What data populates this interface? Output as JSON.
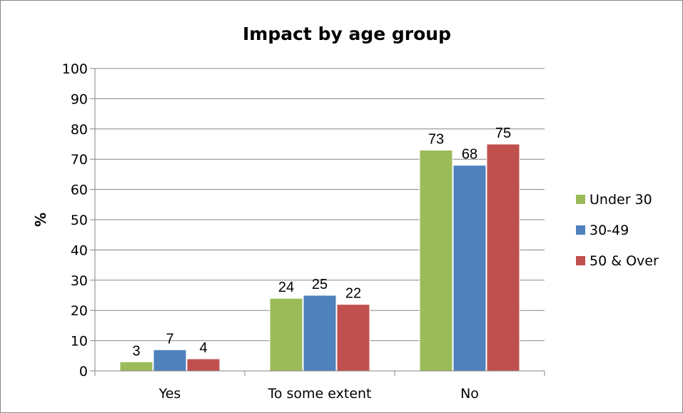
{
  "chart_data": {
    "type": "bar",
    "title": "Impact by age group",
    "xlabel": "",
    "ylabel": "%",
    "ylim": [
      0,
      100
    ],
    "yticks": [
      0,
      10,
      20,
      30,
      40,
      50,
      60,
      70,
      80,
      90,
      100
    ],
    "grid": true,
    "legend_position": "right",
    "categories": [
      "Yes",
      "To some extent",
      "No"
    ],
    "series": [
      {
        "name": "Under 30",
        "color": "#9BBB59",
        "values": [
          3,
          24,
          73
        ],
        "labels": [
          "3",
          "24",
          "73"
        ]
      },
      {
        "name": "30-49",
        "color": "#4F81BD",
        "values": [
          7,
          25,
          68
        ],
        "labels": [
          "7",
          "25",
          "68"
        ]
      },
      {
        "name": "50 & Over",
        "color": "#C0504D",
        "values": [
          4,
          22,
          75
        ],
        "labels": [
          "4",
          "22",
          "75"
        ]
      }
    ]
  }
}
